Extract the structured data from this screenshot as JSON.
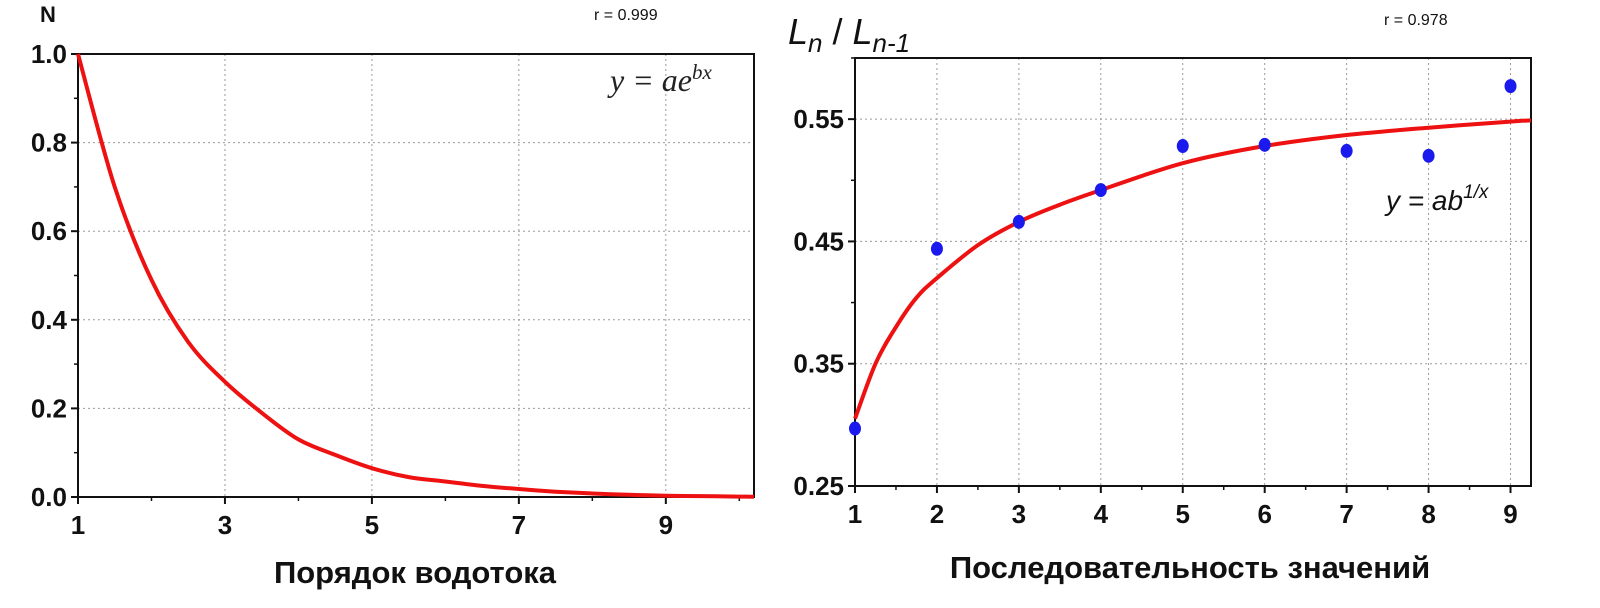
{
  "colors": {
    "curve": "#ee1111",
    "points": "#1a1aee",
    "axis": "#111111",
    "grid": "#9a9a9a"
  },
  "chart_data": [
    {
      "type": "line",
      "title": "",
      "ylabel": "N",
      "xlabel": "Порядок водотока",
      "annotation_r": "r = 0.999",
      "formula": {
        "base": "y = ae",
        "sup": "bx"
      },
      "xlim": [
        1,
        10.2
      ],
      "ylim": [
        0,
        1
      ],
      "xticks": [
        1,
        3,
        5,
        7,
        9
      ],
      "xtick_labels": [
        "1",
        "3",
        "5",
        "7",
        "9"
      ],
      "yticks": [
        0,
        0.2,
        0.4,
        0.6,
        0.8,
        1.0
      ],
      "ytick_labels": [
        "0.0",
        "0.2",
        "0.4",
        "0.6",
        "0.8",
        "1.0"
      ],
      "grid": true,
      "series": [
        {
          "x": [
            1,
            1.5,
            2,
            2.5,
            3,
            3.5,
            4,
            4.5,
            5,
            5.5,
            6,
            6.5,
            7,
            7.5,
            8,
            8.5,
            9,
            9.5,
            10,
            10.2
          ],
          "y": [
            1.0,
            0.7,
            0.49,
            0.35,
            0.26,
            0.19,
            0.13,
            0.095,
            0.065,
            0.045,
            0.035,
            0.025,
            0.018,
            0.012,
            0.008,
            0.005,
            0.003,
            0.002,
            0.001,
            0.0005
          ]
        }
      ]
    },
    {
      "type": "scatter",
      "title": "",
      "ylabel": {
        "L1": "L",
        "s1": "n",
        "sep": " / ",
        "L2": "L",
        "s2": "n-1"
      },
      "xlabel": "Последовательность значений",
      "annotation_r": "r = 0.978",
      "formula": {
        "base": "y = ab",
        "sup": "1/x"
      },
      "xlim": [
        1,
        9.25
      ],
      "ylim": [
        0.25,
        0.6
      ],
      "xticks": [
        1,
        2,
        3,
        4,
        5,
        6,
        7,
        8,
        9
      ],
      "xtick_labels": [
        "1",
        "2",
        "3",
        "4",
        "5",
        "6",
        "7",
        "8",
        "9"
      ],
      "yticks": [
        0.25,
        0.35,
        0.45,
        0.55
      ],
      "ytick_labels": [
        "0.25",
        "0.35",
        "0.45",
        "0.55"
      ],
      "grid": true,
      "series": [
        {
          "x": [
            1,
            2,
            3,
            4,
            5,
            6,
            7,
            8,
            9
          ],
          "y": [
            0.297,
            0.444,
            0.466,
            0.492,
            0.528,
            0.529,
            0.524,
            0.52,
            0.577
          ]
        }
      ],
      "fit": {
        "x": [
          1,
          1.25,
          1.5,
          1.75,
          2,
          2.5,
          3,
          3.5,
          4,
          5,
          6,
          7,
          8,
          9,
          9.25
        ],
        "y": [
          0.305,
          0.35,
          0.38,
          0.404,
          0.42,
          0.447,
          0.466,
          0.48,
          0.492,
          0.514,
          0.528,
          0.537,
          0.543,
          0.548,
          0.549
        ]
      }
    }
  ]
}
